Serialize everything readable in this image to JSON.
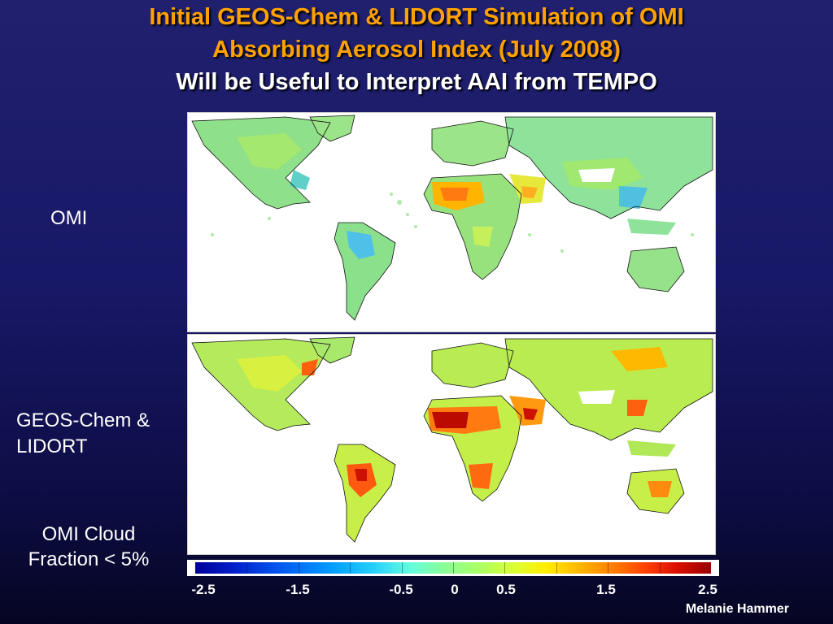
{
  "title": {
    "line1": "Initial GEOS-Chem & LIDORT Simulation of OMI",
    "line2": "Absorbing Aerosol Index (July 2008)",
    "line3": "Will be Useful to Interpret AAI from TEMPO"
  },
  "panels": {
    "top_label": "OMI",
    "bottom_label": "GEOS-Chem & LIDORT",
    "bottom_note": "OMI Cloud Fraction < 5%"
  },
  "colorbar": {
    "tick_labels": [
      "-2.5",
      "-1.5",
      "-0.5",
      "0",
      "0.5",
      "1.5",
      "2.5"
    ],
    "min": -2.5,
    "max": 2.5,
    "colors": [
      "#000099",
      "#0055ee",
      "#22ccff",
      "#88ff99",
      "#ffee00",
      "#ff8800",
      "#990000"
    ]
  },
  "credit": "Melanie Hammer"
}
